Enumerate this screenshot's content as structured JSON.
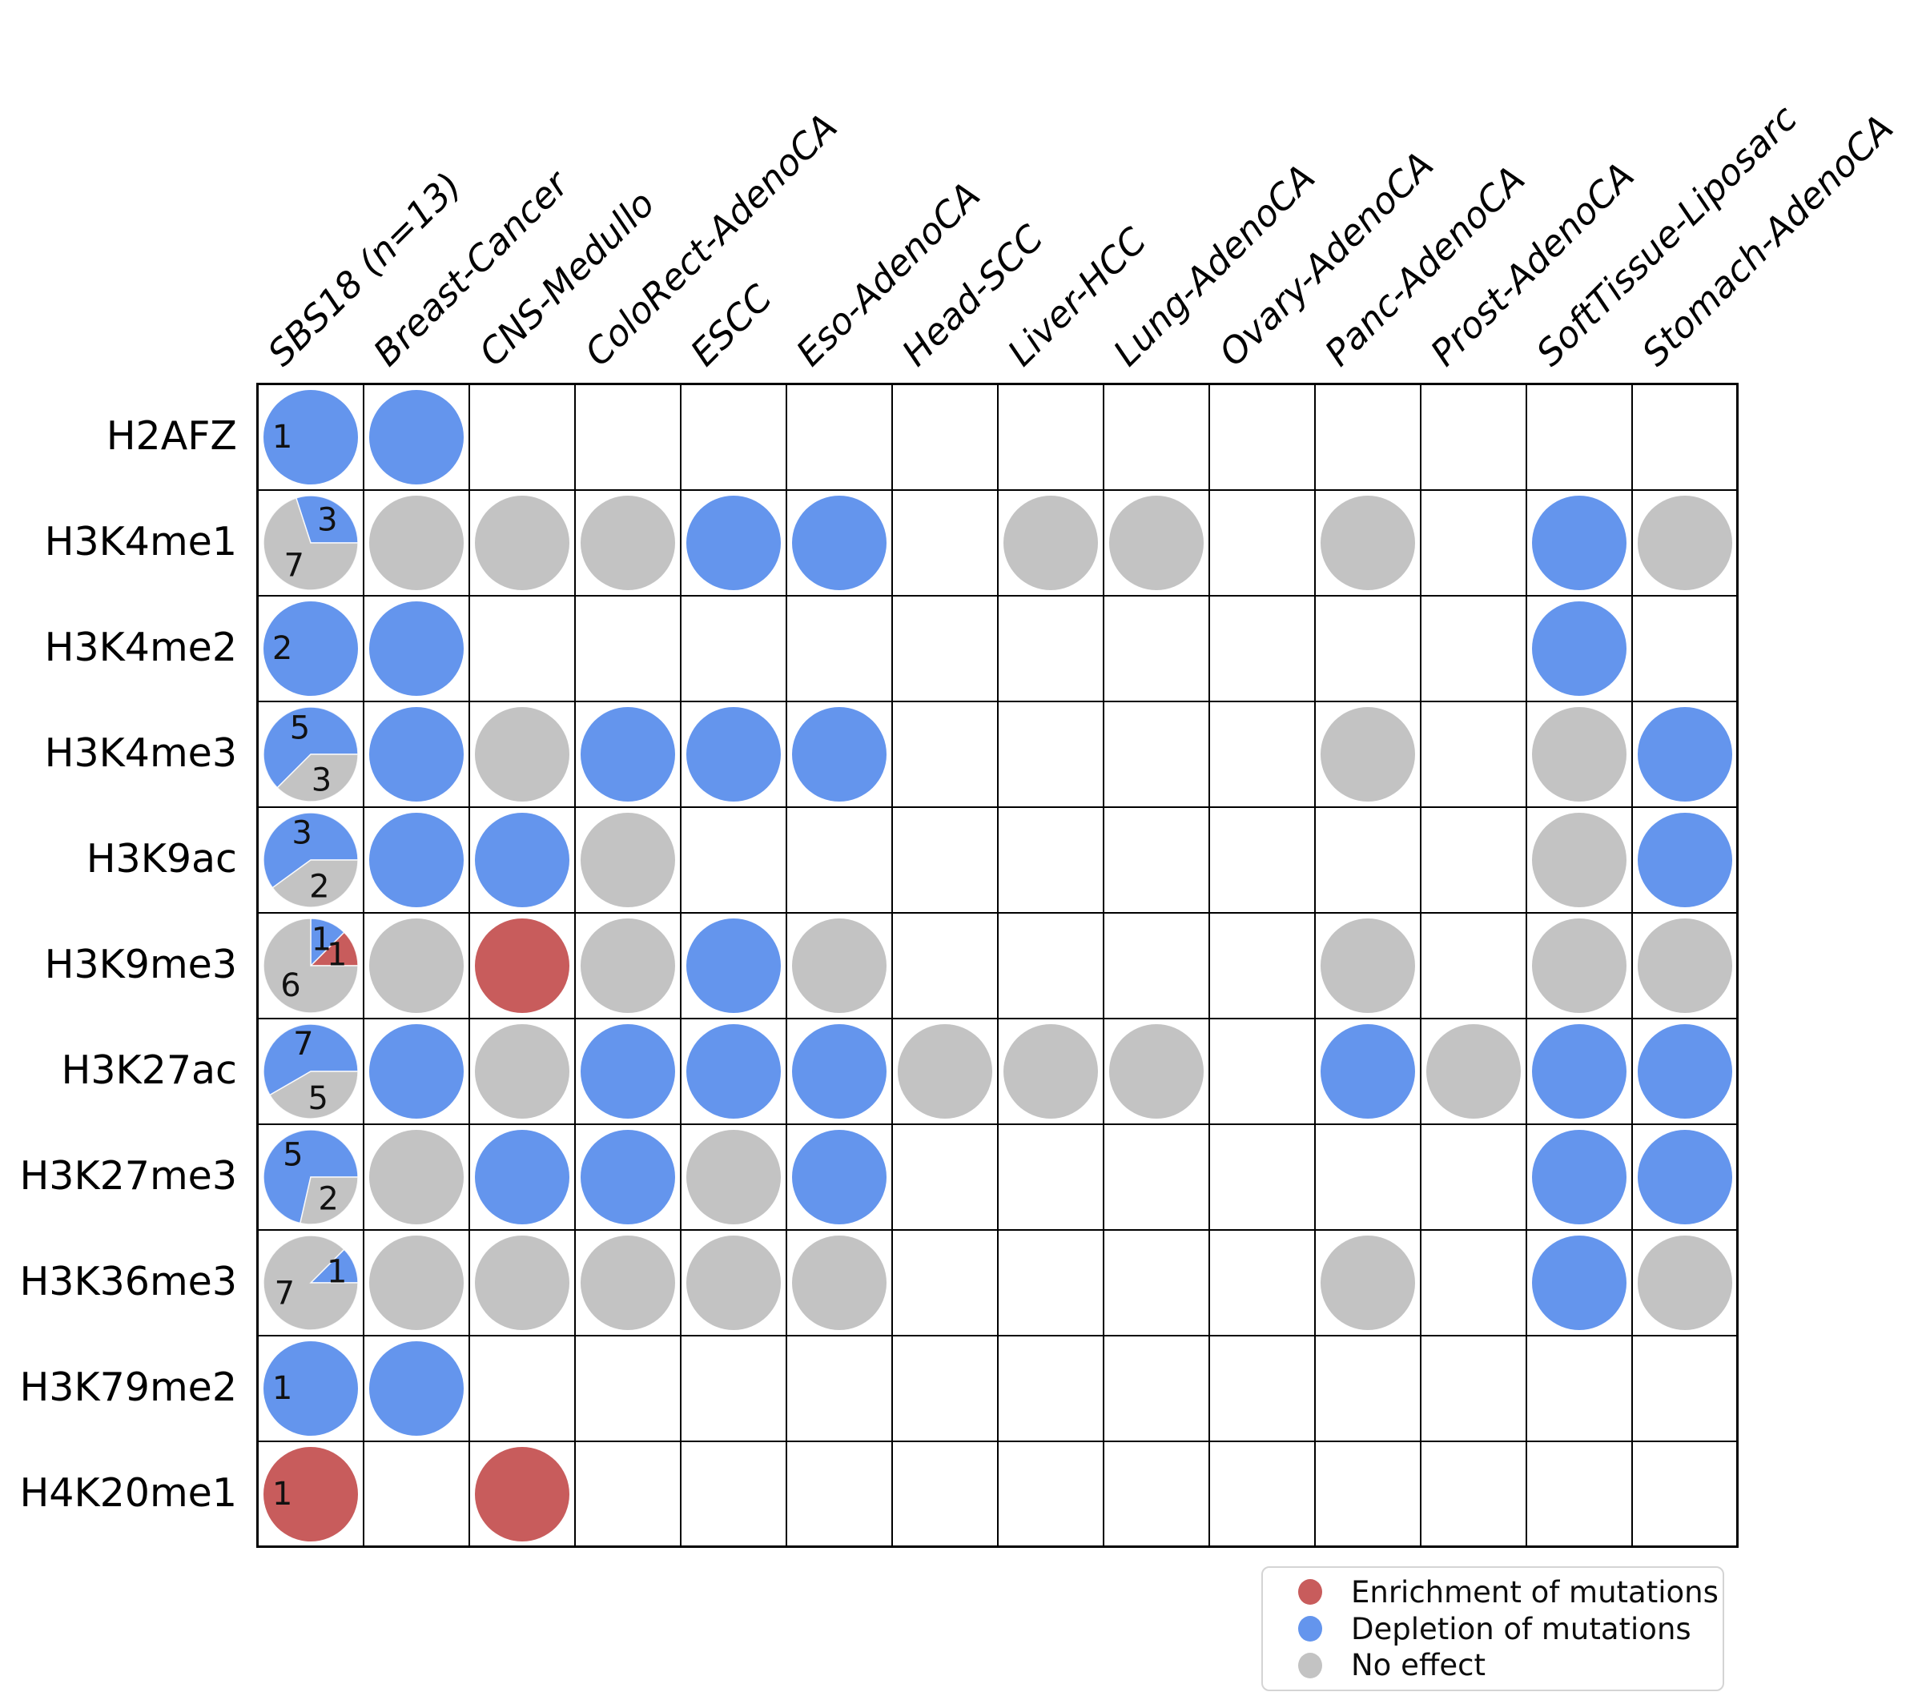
{
  "colors": {
    "enrichment": "#C85C5C",
    "depletion": "#6495ED",
    "no_effect": "#C3C3C3",
    "grid_line": "#000000",
    "pie_label": "#111111"
  },
  "legend": {
    "items": [
      {
        "label": "Enrichment of mutations",
        "effect": "enrichment"
      },
      {
        "label": "Depletion of mutations",
        "effect": "depletion"
      },
      {
        "label": "No effect",
        "effect": "no_effect"
      }
    ]
  },
  "chart_data": {
    "type": "heatmap",
    "description": "Matrix of histone marks (rows) vs cancer types (columns). First column holds pie charts of sample counts per effect for signature SBS18 (n=13); other cells hold single-effect circles: red=enrichment of mutations, blue=depletion of mutations, gray=no effect, empty=no data.",
    "columns": [
      "SBS18 (n=13)",
      "Breast-Cancer",
      "CNS-Medullo",
      "ColoRect-AdenoCA",
      "ESCC",
      "Eso-AdenoCA",
      "Head-SCC",
      "Liver-HCC",
      "Lung-AdenoCA",
      "Ovary-AdenoCA",
      "Panc-AdenoCA",
      "Prost-AdenoCA",
      "SoftTissue-Liposarc",
      "Stomach-AdenoCA"
    ],
    "rows": [
      {
        "label": "H2AFZ",
        "cells": [
          {
            "pie": [
              {
                "effect": "depletion",
                "count": 1
              }
            ]
          },
          {
            "effect": "depletion"
          },
          null,
          null,
          null,
          null,
          null,
          null,
          null,
          null,
          null,
          null,
          null,
          null
        ]
      },
      {
        "label": "H3K4me1",
        "cells": [
          {
            "pie": [
              {
                "effect": "depletion",
                "count": 3
              },
              {
                "effect": "no_effect",
                "count": 7
              }
            ]
          },
          {
            "effect": "no_effect"
          },
          {
            "effect": "no_effect"
          },
          {
            "effect": "no_effect"
          },
          {
            "effect": "depletion"
          },
          {
            "effect": "depletion"
          },
          null,
          {
            "effect": "no_effect"
          },
          {
            "effect": "no_effect"
          },
          null,
          {
            "effect": "no_effect"
          },
          null,
          {
            "effect": "depletion"
          },
          {
            "effect": "no_effect"
          }
        ]
      },
      {
        "label": "H3K4me2",
        "cells": [
          {
            "pie": [
              {
                "effect": "depletion",
                "count": 2
              }
            ]
          },
          {
            "effect": "depletion"
          },
          null,
          null,
          null,
          null,
          null,
          null,
          null,
          null,
          null,
          null,
          {
            "effect": "depletion"
          },
          null
        ]
      },
      {
        "label": "H3K4me3",
        "cells": [
          {
            "pie": [
              {
                "effect": "depletion",
                "count": 5
              },
              {
                "effect": "no_effect",
                "count": 3
              }
            ]
          },
          {
            "effect": "depletion"
          },
          {
            "effect": "no_effect"
          },
          {
            "effect": "depletion"
          },
          {
            "effect": "depletion"
          },
          {
            "effect": "depletion"
          },
          null,
          null,
          null,
          null,
          {
            "effect": "no_effect"
          },
          null,
          {
            "effect": "no_effect"
          },
          {
            "effect": "depletion"
          }
        ]
      },
      {
        "label": "H3K9ac",
        "cells": [
          {
            "pie": [
              {
                "effect": "depletion",
                "count": 3
              },
              {
                "effect": "no_effect",
                "count": 2
              }
            ]
          },
          {
            "effect": "depletion"
          },
          {
            "effect": "depletion"
          },
          {
            "effect": "no_effect"
          },
          null,
          null,
          null,
          null,
          null,
          null,
          null,
          null,
          {
            "effect": "no_effect"
          },
          {
            "effect": "depletion"
          }
        ]
      },
      {
        "label": "H3K9me3",
        "cells": [
          {
            "pie": [
              {
                "effect": "enrichment",
                "count": 1
              },
              {
                "effect": "depletion",
                "count": 1
              },
              {
                "effect": "no_effect",
                "count": 6
              }
            ]
          },
          {
            "effect": "no_effect"
          },
          {
            "effect": "enrichment"
          },
          {
            "effect": "no_effect"
          },
          {
            "effect": "depletion"
          },
          {
            "effect": "no_effect"
          },
          null,
          null,
          null,
          null,
          {
            "effect": "no_effect"
          },
          null,
          {
            "effect": "no_effect"
          },
          {
            "effect": "no_effect"
          }
        ]
      },
      {
        "label": "H3K27ac",
        "cells": [
          {
            "pie": [
              {
                "effect": "depletion",
                "count": 7
              },
              {
                "effect": "no_effect",
                "count": 5
              }
            ]
          },
          {
            "effect": "depletion"
          },
          {
            "effect": "no_effect"
          },
          {
            "effect": "depletion"
          },
          {
            "effect": "depletion"
          },
          {
            "effect": "depletion"
          },
          {
            "effect": "no_effect"
          },
          {
            "effect": "no_effect"
          },
          {
            "effect": "no_effect"
          },
          null,
          {
            "effect": "depletion"
          },
          {
            "effect": "no_effect"
          },
          {
            "effect": "depletion"
          },
          {
            "effect": "depletion"
          }
        ]
      },
      {
        "label": "H3K27me3",
        "cells": [
          {
            "pie": [
              {
                "effect": "depletion",
                "count": 5
              },
              {
                "effect": "no_effect",
                "count": 2
              }
            ]
          },
          {
            "effect": "no_effect"
          },
          {
            "effect": "depletion"
          },
          {
            "effect": "depletion"
          },
          {
            "effect": "no_effect"
          },
          {
            "effect": "depletion"
          },
          null,
          null,
          null,
          null,
          null,
          null,
          {
            "effect": "depletion"
          },
          {
            "effect": "depletion"
          }
        ]
      },
      {
        "label": "H3K36me3",
        "cells": [
          {
            "pie": [
              {
                "effect": "depletion",
                "count": 1
              },
              {
                "effect": "no_effect",
                "count": 7
              }
            ]
          },
          {
            "effect": "no_effect"
          },
          {
            "effect": "no_effect"
          },
          {
            "effect": "no_effect"
          },
          {
            "effect": "no_effect"
          },
          {
            "effect": "no_effect"
          },
          null,
          null,
          null,
          null,
          {
            "effect": "no_effect"
          },
          null,
          {
            "effect": "depletion"
          },
          {
            "effect": "no_effect"
          }
        ]
      },
      {
        "label": "H3K79me2",
        "cells": [
          {
            "pie": [
              {
                "effect": "depletion",
                "count": 1
              }
            ]
          },
          {
            "effect": "depletion"
          },
          null,
          null,
          null,
          null,
          null,
          null,
          null,
          null,
          null,
          null,
          null,
          null
        ]
      },
      {
        "label": "H4K20me1",
        "cells": [
          {
            "pie": [
              {
                "effect": "enrichment",
                "count": 1
              }
            ]
          },
          null,
          {
            "effect": "enrichment"
          },
          null,
          null,
          null,
          null,
          null,
          null,
          null,
          null,
          null,
          null,
          null
        ]
      }
    ]
  }
}
